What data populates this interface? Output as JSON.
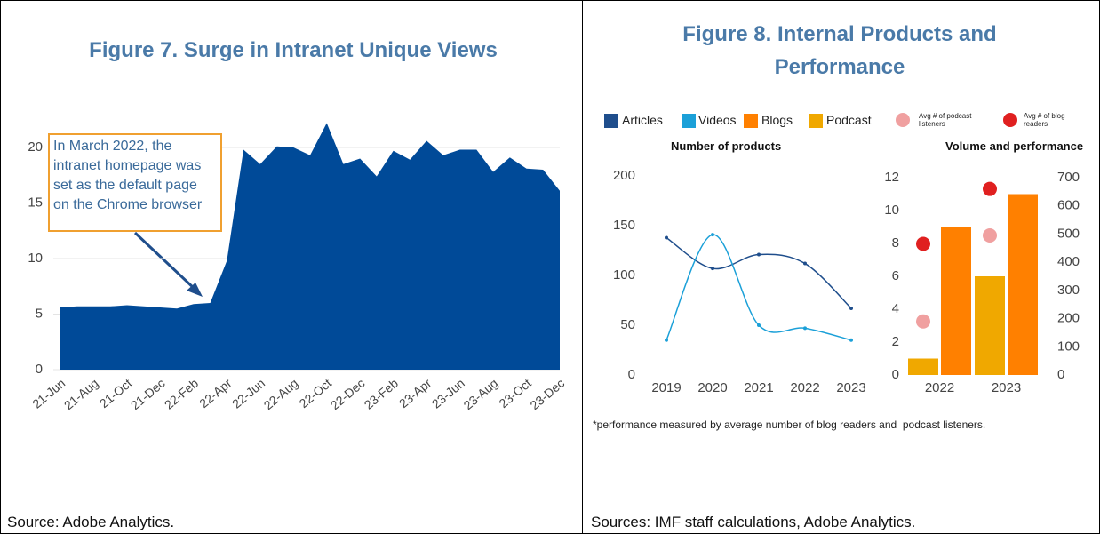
{
  "chart_data": [
    {
      "type": "area",
      "title": "Figure 7. Surge in Intranet Unique Views",
      "annotation": "In March 2022, the intranet homepage was set as the default page on the Chrome browser",
      "categories": [
        "21-Jun",
        null,
        "21-Aug",
        null,
        "21-Oct",
        null,
        "21-Dec",
        null,
        "22-Feb",
        null,
        "22-Apr",
        null,
        "22-Jun",
        null,
        "22-Aug",
        null,
        "22-Oct",
        null,
        "22-Dec",
        null,
        "23-Feb",
        null,
        "23-Apr",
        null,
        "23-Jun",
        null,
        "23-Aug",
        null,
        "23-Oct",
        null,
        "23-Dec"
      ],
      "values": [
        5.6,
        5.7,
        5.7,
        5.7,
        5.8,
        5.7,
        5.6,
        5.5,
        5.9,
        6.0,
        9.8,
        19.8,
        18.5,
        20.1,
        20.0,
        19.3,
        22.2,
        18.5,
        19.0,
        17.4,
        19.7,
        18.9,
        20.6,
        19.3,
        19.8,
        19.8,
        17.8,
        19.1,
        18.1,
        18.0,
        16.1
      ],
      "color": "#004a98",
      "ylim": [
        0,
        22.5
      ],
      "yticks": [
        0,
        5,
        10,
        15,
        20
      ],
      "grid": true
    },
    {
      "type": "line",
      "title": "Figure 8. Internal Products and Performance",
      "subtitle": "Number of products",
      "categories": [
        "2019",
        "2020",
        "2021",
        "2022",
        "2023"
      ],
      "series": [
        {
          "name": "Articles",
          "color": "#1f4e8c",
          "values": [
            138,
            107,
            121,
            112,
            67
          ]
        },
        {
          "name": "Videos",
          "color": "#1ba0d8",
          "values": [
            35,
            141,
            50,
            47,
            35
          ]
        }
      ],
      "ylim": [
        0,
        200
      ],
      "yticks": [
        0,
        50,
        100,
        150,
        200
      ]
    },
    {
      "type": "bar",
      "subtitle": "Volume and performance",
      "categories": [
        "2022",
        "2023"
      ],
      "series": [
        {
          "name": "Podcast",
          "color": "#f0a800",
          "values": [
            1,
            6
          ]
        },
        {
          "name": "Blogs",
          "color": "#ff8000",
          "values": [
            9,
            11
          ]
        },
        {
          "name": "Avg # of podcast listeners",
          "type": "scatter",
          "axis": "y2",
          "color": "#f0a0a0",
          "values": [
            190,
            495
          ]
        },
        {
          "name": "Avg # of blog readers",
          "type": "scatter",
          "axis": "y2",
          "color": "#e02020",
          "values": [
            465,
            660
          ]
        }
      ],
      "ylim": [
        0,
        12
      ],
      "yticks": [
        0,
        2,
        4,
        6,
        8,
        10,
        12
      ],
      "y2lim": [
        0,
        700
      ],
      "y2ticks": [
        0,
        100,
        200,
        300,
        400,
        500,
        600,
        700
      ]
    }
  ],
  "footnote": "*performance measured by average number of blog readers and  podcast listeners.",
  "sources": [
    "Source: Adobe Analytics.",
    "Sources: IMF staff calculations, Adobe Analytics."
  ]
}
